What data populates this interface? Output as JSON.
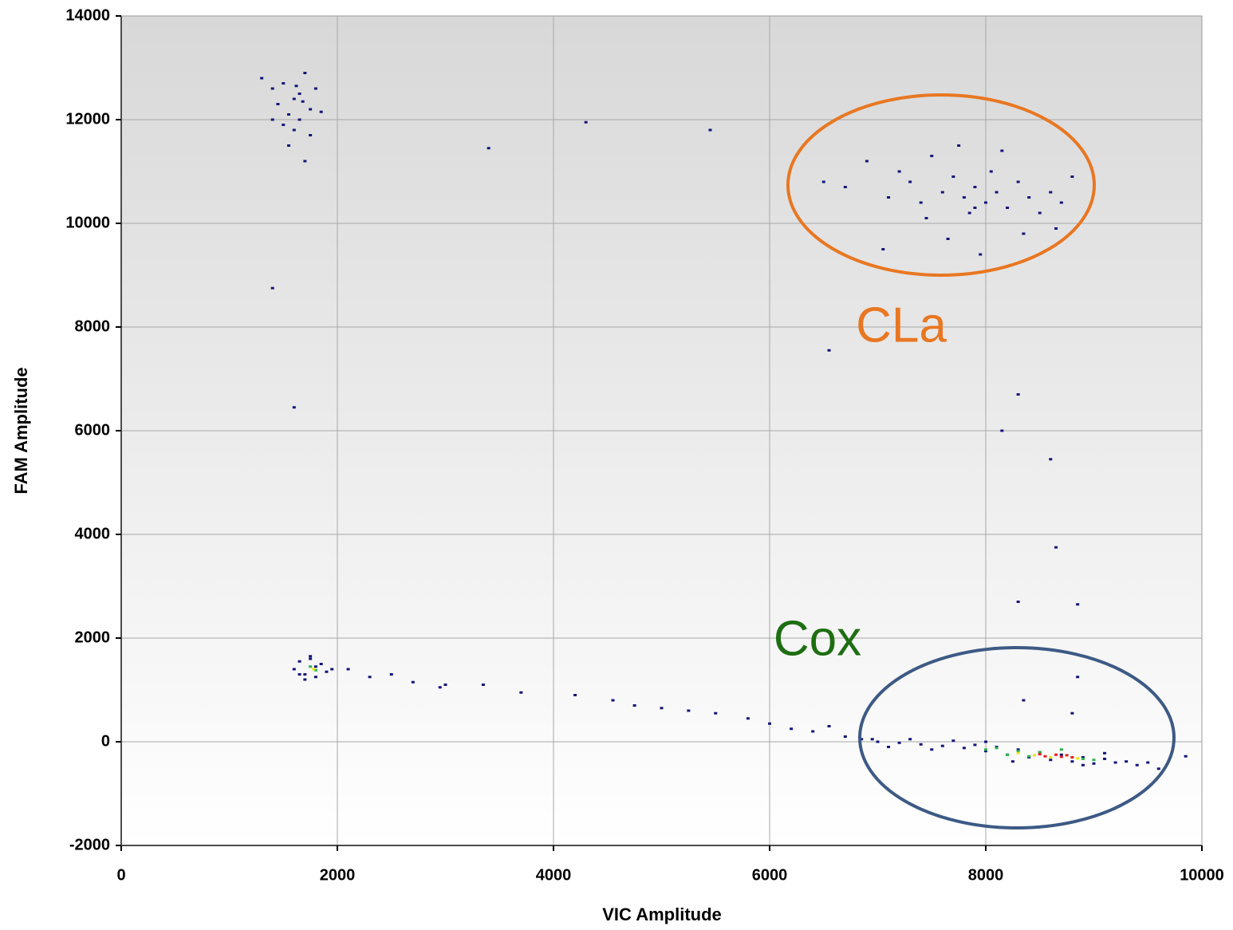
{
  "chart_data": {
    "type": "scatter",
    "xlabel": "VIC Amplitude",
    "ylabel": "FAM Amplitude",
    "xlim": [
      0,
      10000
    ],
    "ylim": [
      -2000,
      14000
    ],
    "xticks": [
      0,
      2000,
      4000,
      6000,
      8000,
      10000
    ],
    "yticks": [
      -2000,
      0,
      2000,
      4000,
      6000,
      8000,
      10000,
      12000,
      14000
    ],
    "grid": true,
    "annotations": [
      {
        "text": "CLa",
        "color": "#e87722"
      },
      {
        "text": "Cox",
        "color": "#1e6e12"
      }
    ],
    "series": [
      {
        "color": "#15157a",
        "x": [
          1300,
          1400,
          1450,
          1500,
          1550,
          1600,
          1650,
          1700,
          1750,
          1800,
          1550,
          1650,
          1700,
          1600,
          1850,
          1500,
          1750,
          1400,
          1680,
          1620,
          6700,
          6900,
          7100,
          7200,
          7300,
          7400,
          7500,
          7600,
          7700,
          7800,
          7850,
          7900,
          8000,
          8050,
          8100,
          8200,
          8300,
          8400,
          8500,
          8600,
          8700,
          8800,
          7650,
          7750,
          7950,
          8150,
          7450,
          8350,
          7050,
          6500,
          8650,
          7900,
          1600,
          1650,
          1700,
          1750,
          1800,
          1850,
          1900,
          1700,
          1800,
          1650,
          1950,
          1750,
          2100,
          2300,
          2500,
          2700,
          2950,
          3000,
          3350,
          3700,
          4200,
          4550,
          4750,
          5000,
          5250,
          5500,
          5800,
          6000,
          6200,
          6400,
          6550,
          6700,
          6850,
          7000,
          7200,
          7400,
          7600,
          7700,
          7800,
          7900,
          8000,
          8100,
          8200,
          8300,
          8400,
          8500,
          8600,
          8700,
          8800,
          8900,
          9000,
          9100,
          9200,
          9300,
          9400,
          9500,
          9600,
          9850,
          7300,
          7500,
          8000,
          8250,
          8900,
          9100,
          7100,
          6950,
          3400,
          4300,
          5450,
          1400,
          1600,
          6550,
          8300,
          8150,
          8600,
          8650,
          8300,
          8850,
          8850,
          8350,
          8800
        ],
        "values": [
          12800,
          12600,
          12300,
          12700,
          12100,
          11800,
          12500,
          12900,
          12200,
          12600,
          11500,
          12000,
          11200,
          12400,
          12150,
          11900,
          11700,
          12000,
          12350,
          12650,
          10700,
          11200,
          10500,
          11000,
          10800,
          10400,
          11300,
          10600,
          10900,
          10500,
          10200,
          10700,
          10400,
          11000,
          10600,
          10300,
          10800,
          10500,
          10200,
          10600,
          10400,
          10900,
          9700,
          11500,
          9400,
          11400,
          10100,
          9800,
          9500,
          10800,
          9900,
          10300,
          1400,
          1550,
          1300,
          1600,
          1250,
          1500,
          1350,
          1200,
          1450,
          1300,
          1400,
          1650,
          1400,
          1250,
          1300,
          1150,
          1050,
          1100,
          1100,
          950,
          900,
          800,
          700,
          650,
          600,
          550,
          450,
          350,
          250,
          200,
          300,
          100,
          50,
          0,
          -20,
          -50,
          -80,
          20,
          -120,
          -60,
          -180,
          -100,
          -250,
          -150,
          -300,
          -200,
          -350,
          -250,
          -380,
          -300,
          -420,
          -330,
          -400,
          -380,
          -450,
          -400,
          -520,
          -280,
          50,
          -150,
          0,
          -380,
          -450,
          -220,
          -100,
          50,
          11450,
          11950,
          11800,
          8750,
          6450,
          7550,
          6700,
          6000,
          5450,
          3750,
          2700,
          2650,
          1250,
          800,
          550
        ]
      },
      {
        "color": "#2db34a",
        "x": [
          1750,
          1800,
          8000,
          8100,
          8200,
          8300,
          8400,
          8500,
          8900,
          9000,
          8700
        ],
        "values": [
          1450,
          1380,
          -150,
          -120,
          -250,
          -180,
          -280,
          -200,
          -330,
          -350,
          -150
        ]
      },
      {
        "color": "#e6e619",
        "x": [
          1780,
          8300,
          8450,
          8600,
          8850
        ],
        "values": [
          1400,
          -220,
          -260,
          -300,
          -320
        ]
      },
      {
        "color": "#e0201b",
        "x": [
          8500,
          8550,
          8650,
          8700,
          8750,
          8800
        ],
        "values": [
          -240,
          -280,
          -250,
          -290,
          -260,
          -300
        ]
      }
    ]
  }
}
